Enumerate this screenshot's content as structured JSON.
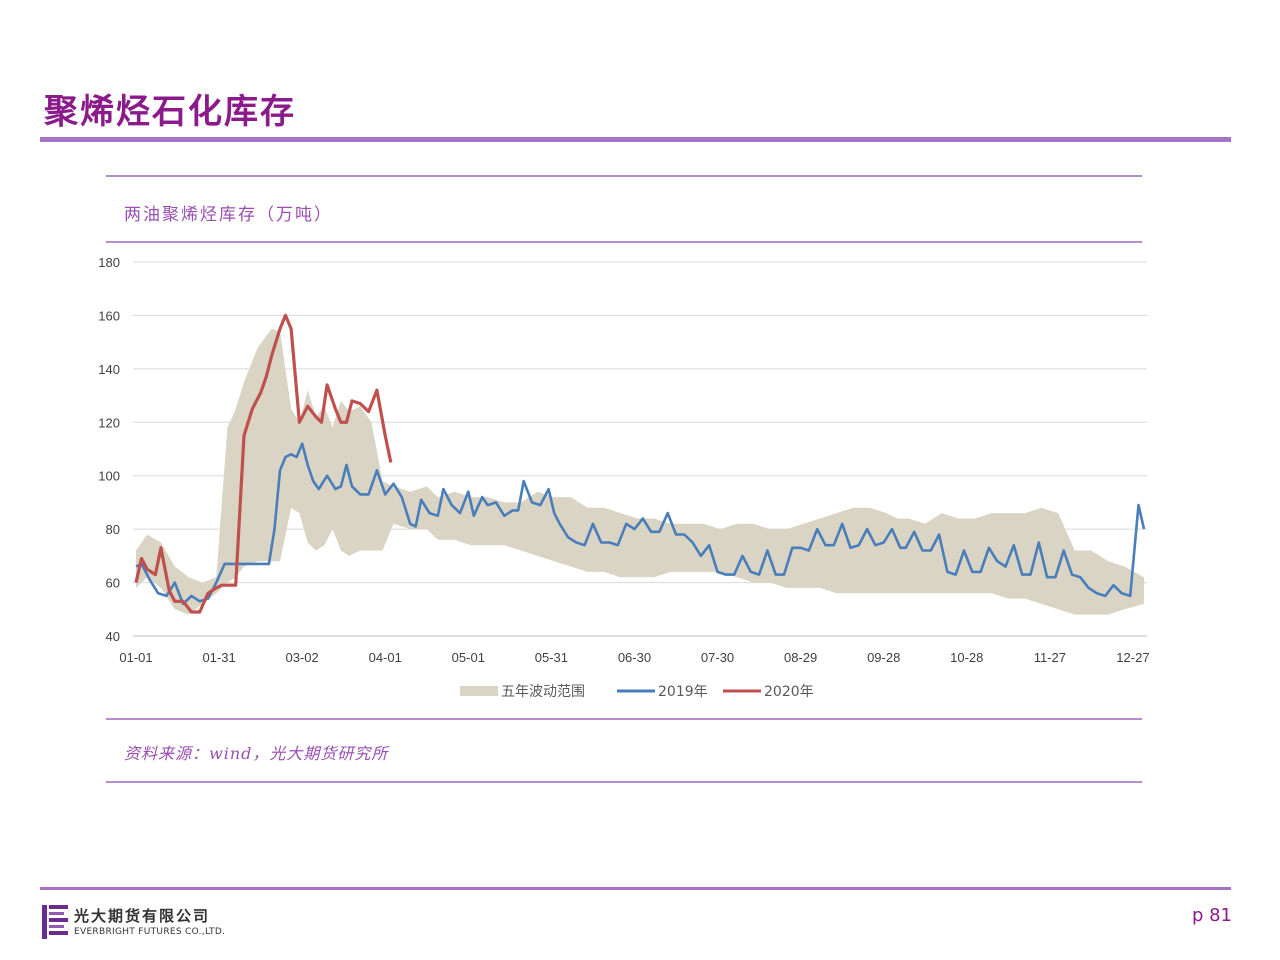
{
  "slide": {
    "title": "聚烯烃石化库存",
    "chart_title": "两油聚烯烃库存（万吨）",
    "source": "资料来源：wind，光大期货研究所",
    "page_number": "p 81"
  },
  "logo": {
    "cn": "光大期货有限公司",
    "en": "EVERBRIGHT FUTURES CO.,LTD."
  },
  "colors": {
    "accent": "#8b1a8b",
    "rule": "#a674c6",
    "band": "#d9d4c3",
    "series_2019": "#4a7ebb",
    "series_2020": "#c0504d"
  },
  "chart_data": {
    "type": "line",
    "title": "两油聚烯烃库存（万吨）",
    "xlabel": "",
    "ylabel": "",
    "ylim": [
      40,
      180
    ],
    "yticks": [
      40,
      60,
      80,
      100,
      120,
      140,
      160,
      180
    ],
    "xlim": [
      1,
      365
    ],
    "xticks": [
      {
        "label": "01-01",
        "day": 1
      },
      {
        "label": "01-31",
        "day": 31
      },
      {
        "label": "03-02",
        "day": 61
      },
      {
        "label": "04-01",
        "day": 91
      },
      {
        "label": "05-01",
        "day": 121
      },
      {
        "label": "05-31",
        "day": 151
      },
      {
        "label": "06-30",
        "day": 181
      },
      {
        "label": "07-30",
        "day": 211
      },
      {
        "label": "08-29",
        "day": 241
      },
      {
        "label": "09-28",
        "day": 271
      },
      {
        "label": "10-28",
        "day": 301
      },
      {
        "label": "11-27",
        "day": 331
      },
      {
        "label": "12-27",
        "day": 361
      }
    ],
    "grid": true,
    "legend_position": "bottom",
    "legend": [
      "五年波动范围",
      "2019年",
      "2020年"
    ],
    "band": {
      "name": "五年波动范围",
      "x": [
        1,
        5,
        10,
        15,
        20,
        25,
        30,
        34,
        37,
        40,
        45,
        50,
        53,
        57,
        60,
        63,
        66,
        69,
        72,
        75,
        78,
        82,
        86,
        90,
        94,
        100,
        106,
        110,
        116,
        122,
        128,
        134,
        140,
        146,
        152,
        158,
        164,
        170,
        176,
        182,
        188,
        194,
        200,
        206,
        212,
        218,
        224,
        230,
        236,
        242,
        248,
        254,
        260,
        266,
        272,
        276,
        280,
        286,
        292,
        298,
        304,
        310,
        316,
        322,
        328,
        334,
        340,
        346,
        352,
        358,
        365
      ],
      "upper": [
        72,
        78,
        75,
        66,
        62,
        60,
        62,
        118,
        125,
        135,
        148,
        155,
        154,
        125,
        120,
        132,
        122,
        126,
        118,
        128,
        124,
        126,
        120,
        98,
        96,
        94,
        96,
        92,
        94,
        92,
        92,
        90,
        90,
        94,
        92,
        92,
        88,
        88,
        86,
        84,
        84,
        82,
        82,
        82,
        80,
        82,
        82,
        80,
        80,
        82,
        84,
        86,
        88,
        88,
        86,
        84,
        84,
        82,
        86,
        84,
        84,
        86,
        86,
        86,
        88,
        86,
        72,
        72,
        68,
        66,
        62
      ],
      "lower": [
        58,
        62,
        58,
        50,
        48,
        52,
        56,
        60,
        62,
        66,
        68,
        68,
        68,
        88,
        86,
        75,
        72,
        74,
        80,
        72,
        70,
        72,
        72,
        72,
        82,
        80,
        80,
        76,
        76,
        74,
        74,
        74,
        72,
        70,
        68,
        66,
        64,
        64,
        62,
        62,
        62,
        64,
        64,
        64,
        64,
        62,
        60,
        60,
        58,
        58,
        58,
        56,
        56,
        56,
        56,
        56,
        56,
        56,
        56,
        56,
        56,
        56,
        54,
        54,
        52,
        50,
        48,
        48,
        48,
        50,
        52
      ]
    },
    "series": [
      {
        "name": "2019年",
        "color": "#4a7ebb",
        "x": [
          1,
          3,
          6,
          9,
          12,
          15,
          18,
          21,
          24,
          27,
          30,
          33,
          36,
          38,
          40,
          42,
          45,
          49,
          51,
          53,
          55,
          57,
          59,
          61,
          63,
          65,
          67,
          70,
          73,
          75,
          77,
          79,
          82,
          85,
          88,
          91,
          94,
          97,
          100,
          102,
          104,
          107,
          110,
          112,
          115,
          118,
          121,
          123,
          126,
          128,
          131,
          134,
          137,
          139,
          141,
          144,
          147,
          150,
          152,
          154,
          157,
          160,
          163,
          166,
          169,
          172,
          175,
          178,
          181,
          184,
          187,
          190,
          193,
          196,
          199,
          202,
          205,
          208,
          211,
          214,
          217,
          220,
          223,
          226,
          229,
          232,
          235,
          238,
          241,
          244,
          247,
          250,
          253,
          256,
          259,
          262,
          265,
          268,
          271,
          274,
          277,
          279,
          282,
          285,
          288,
          291,
          294,
          297,
          300,
          303,
          306,
          309,
          312,
          315,
          318,
          321,
          324,
          327,
          330,
          333,
          336,
          339,
          342,
          345,
          348,
          351,
          354,
          357,
          360,
          363,
          365
        ],
        "y": [
          66,
          67,
          61,
          56,
          55,
          60,
          52,
          55,
          53,
          54,
          60,
          67,
          67,
          67,
          67,
          67,
          67,
          67,
          80,
          102,
          107,
          108,
          107,
          112,
          104,
          98,
          95,
          100,
          95,
          96,
          104,
          96,
          93,
          93,
          102,
          93,
          97,
          92,
          82,
          81,
          91,
          86,
          85,
          95,
          89,
          86,
          94,
          85,
          92,
          89,
          90,
          85,
          87,
          87,
          98,
          90,
          89,
          95,
          86,
          82,
          77,
          75,
          74,
          82,
          75,
          75,
          74,
          82,
          80,
          84,
          79,
          79,
          86,
          78,
          78,
          75,
          70,
          74,
          64,
          63,
          63,
          70,
          64,
          63,
          72,
          63,
          63,
          73,
          73,
          72,
          80,
          74,
          74,
          82,
          73,
          74,
          80,
          74,
          75,
          80,
          73,
          73,
          79,
          72,
          72,
          78,
          64,
          63,
          72,
          64,
          64,
          73,
          68,
          66,
          74,
          63,
          63,
          75,
          62,
          62,
          72,
          63,
          62,
          58,
          56,
          55,
          59,
          56,
          55,
          89,
          80
        ],
        "comment": "approximate reading"
      },
      {
        "name": "2020年",
        "color": "#c0504d",
        "x": [
          1,
          3,
          5,
          8,
          10,
          13,
          15,
          18,
          21,
          24,
          27,
          30,
          32,
          34,
          37,
          40,
          43,
          46,
          48,
          50,
          53,
          55,
          57,
          60,
          63,
          66,
          68,
          70,
          73,
          75,
          77,
          79,
          82,
          85,
          88,
          91,
          93
        ],
        "y": [
          60,
          69,
          65,
          63,
          73,
          57,
          53,
          53,
          49,
          49,
          56,
          58,
          59,
          59,
          59,
          115,
          125,
          131,
          137,
          145,
          155,
          160,
          155,
          120,
          126,
          122,
          120,
          134,
          125,
          120,
          120,
          128,
          127,
          124,
          132,
          115,
          105
        ]
      }
    ]
  }
}
